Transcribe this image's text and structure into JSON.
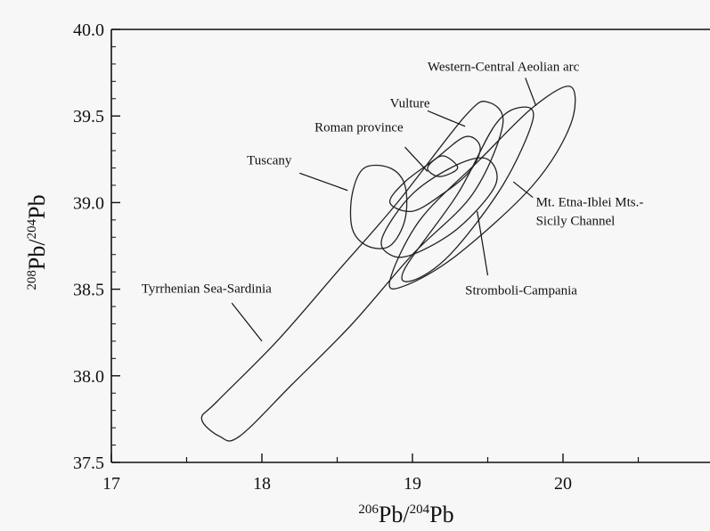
{
  "chart_data": {
    "type": "scatter",
    "xlabel": {
      "mass1": "206",
      "el1": "Pb",
      "sep": "/",
      "mass2": "204",
      "el2": "Pb"
    },
    "ylabel": {
      "mass1": "208",
      "el1": "Pb",
      "sep": "/",
      "mass2": "204",
      "el2": "Pb"
    },
    "xlim": [
      17,
      21
    ],
    "ylim": [
      37.5,
      40.0
    ],
    "x_ticks": [
      "17",
      "18",
      "19",
      "20"
    ],
    "y_ticks": [
      "37.5",
      "38.0",
      "38.5",
      "39.0",
      "39.5",
      "40.0"
    ],
    "grid": false,
    "series": [
      {
        "name": "Tyrrhenian Sea-Sardinia",
        "polygon": [
          [
            17.72,
            37.65
          ],
          [
            17.85,
            37.65
          ],
          [
            18.2,
            37.95
          ],
          [
            18.6,
            38.3
          ],
          [
            19.0,
            38.7
          ],
          [
            19.4,
            39.05
          ],
          [
            19.6,
            39.45
          ],
          [
            19.5,
            39.58
          ],
          [
            19.35,
            39.5
          ],
          [
            18.9,
            39.0
          ],
          [
            18.5,
            38.6
          ],
          [
            18.1,
            38.2
          ],
          [
            17.7,
            37.85
          ],
          [
            17.6,
            37.75
          ]
        ]
      },
      {
        "name": "Tuscany",
        "polygon": [
          [
            18.6,
            38.85
          ],
          [
            18.6,
            39.05
          ],
          [
            18.68,
            39.2
          ],
          [
            18.85,
            39.2
          ],
          [
            18.95,
            39.1
          ],
          [
            18.95,
            38.9
          ],
          [
            18.85,
            38.75
          ],
          [
            18.7,
            38.75
          ]
        ]
      },
      {
        "name": "Roman province",
        "polygon": [
          [
            18.85,
            39.0
          ],
          [
            18.95,
            39.12
          ],
          [
            19.15,
            39.25
          ],
          [
            19.35,
            39.38
          ],
          [
            19.45,
            39.32
          ],
          [
            19.38,
            39.18
          ],
          [
            19.2,
            39.05
          ],
          [
            19.0,
            38.95
          ]
        ]
      },
      {
        "name": "Stromboli-Campania",
        "polygon": [
          [
            18.8,
            38.8
          ],
          [
            19.0,
            39.05
          ],
          [
            19.3,
            39.22
          ],
          [
            19.5,
            39.25
          ],
          [
            19.55,
            39.1
          ],
          [
            19.3,
            38.85
          ],
          [
            19.0,
            38.7
          ],
          [
            18.85,
            38.7
          ]
        ]
      },
      {
        "name": "Western-Central Aeolian arc",
        "polygon": [
          [
            18.95,
            38.62
          ],
          [
            19.3,
            39.05
          ],
          [
            19.55,
            39.45
          ],
          [
            19.72,
            39.55
          ],
          [
            19.8,
            39.48
          ],
          [
            19.6,
            39.1
          ],
          [
            19.25,
            38.7
          ],
          [
            19.0,
            38.55
          ]
        ]
      },
      {
        "name": "Mt. Etna-Iblei Mts.-Sicily Channel",
        "polygon": [
          [
            18.85,
            38.55
          ],
          [
            19.05,
            38.9
          ],
          [
            19.45,
            39.25
          ],
          [
            19.8,
            39.55
          ],
          [
            20.05,
            39.67
          ],
          [
            20.05,
            39.45
          ],
          [
            19.8,
            39.1
          ],
          [
            19.3,
            38.7
          ],
          [
            18.95,
            38.52
          ]
        ]
      },
      {
        "name": "Vulture",
        "polygon": [
          [
            19.1,
            39.2
          ],
          [
            19.2,
            39.27
          ],
          [
            19.3,
            39.2
          ],
          [
            19.18,
            39.15
          ]
        ]
      }
    ],
    "annotations": [
      {
        "text": "Tyrrhenian Sea-Sardinia",
        "label_at": [
          17.2,
          38.48
        ],
        "anchor": "start",
        "arrow_from": [
          17.8,
          38.42
        ],
        "arrow_to": [
          18.0,
          38.2
        ]
      },
      {
        "text": "Tuscany",
        "label_at": [
          17.9,
          39.22
        ],
        "anchor": "start",
        "arrow_from": [
          18.25,
          39.17
        ],
        "arrow_to": [
          18.57,
          39.07
        ]
      },
      {
        "text": "Roman province",
        "label_at": [
          18.35,
          39.41
        ],
        "anchor": "start",
        "arrow_from": [
          18.95,
          39.32
        ],
        "arrow_to": [
          19.1,
          39.18
        ]
      },
      {
        "text": "Vulture",
        "label_at": [
          18.85,
          39.55
        ],
        "anchor": "start",
        "arrow_from": [
          19.1,
          39.53
        ],
        "arrow_to": [
          19.35,
          39.44
        ]
      },
      {
        "text": "Western-Central Aeolian arc",
        "label_at": [
          19.1,
          39.76
        ],
        "anchor": "start",
        "arrow_from": [
          19.75,
          39.72
        ],
        "arrow_to": [
          19.82,
          39.56
        ]
      },
      {
        "text": "Mt. Etna-Iblei Mts.-",
        "label_at": [
          19.82,
          38.98
        ],
        "anchor": "start",
        "arrow_from": [
          19.8,
          39.03
        ],
        "arrow_to": [
          19.67,
          39.12
        ]
      },
      {
        "text": "Sicily Channel",
        "label_at": [
          19.82,
          38.87
        ],
        "anchor": "start"
      },
      {
        "text": "Stromboli-Campania",
        "label_at": [
          19.35,
          38.47
        ],
        "anchor": "start",
        "arrow_from": [
          19.5,
          38.58
        ],
        "arrow_to": [
          19.43,
          38.95
        ]
      }
    ]
  }
}
